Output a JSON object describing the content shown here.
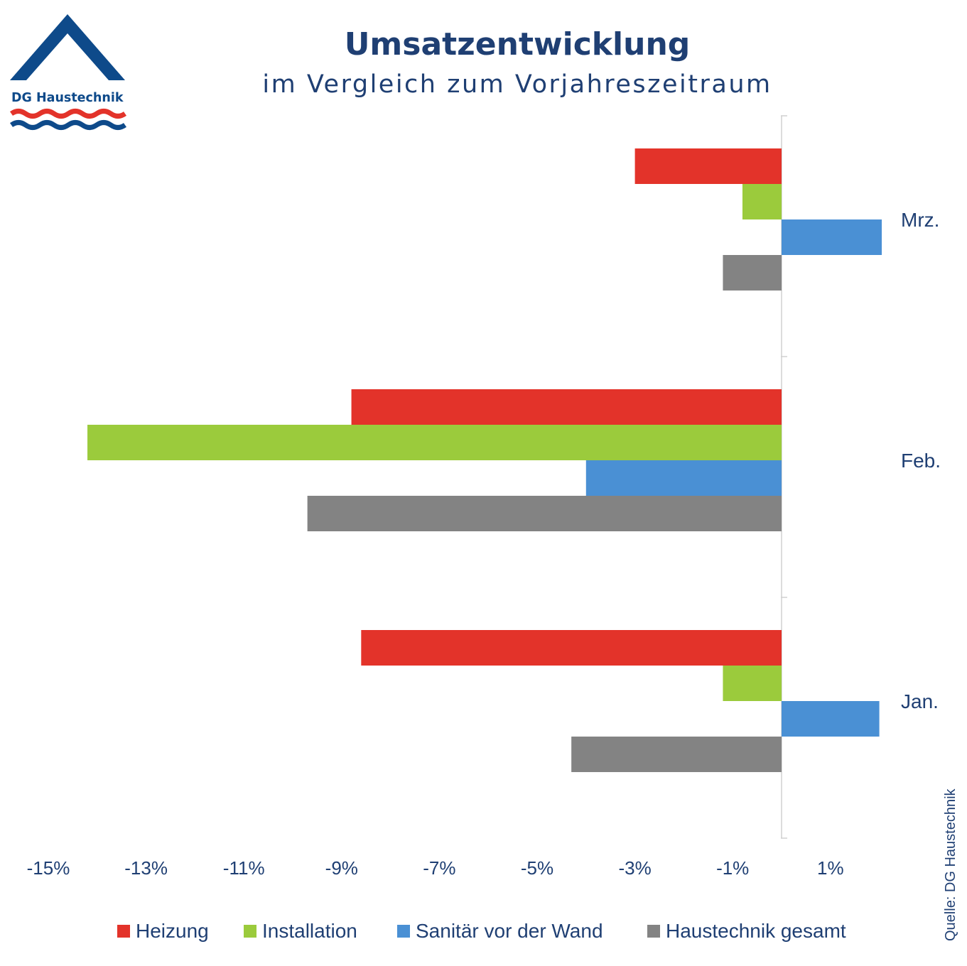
{
  "logo": {
    "text": "DG Haustechnik",
    "color_blue": "#0e4a8a",
    "color_red": "#e3332a"
  },
  "source_note": "Quelle: DG Haustechnik",
  "colors": {
    "text": "#1f3f73",
    "axis": "#d0d0d0"
  },
  "chart_data": {
    "type": "bar",
    "orientation": "horizontal",
    "title": "Umsatzentwicklung",
    "subtitle": "im Vergleich zum Vorjahreszeitraum",
    "categories": [
      "Jan.",
      "Feb.",
      "Mrz."
    ],
    "xlim": [
      -15,
      3
    ],
    "xticks": [
      -15,
      -13,
      -11,
      -9,
      -7,
      -5,
      -3,
      -1,
      1
    ],
    "xtick_labels": [
      "-15%",
      "-13%",
      "-11%",
      "-9%",
      "-7%",
      "-5%",
      "-3%",
      "-1%",
      "1%"
    ],
    "legend_position": "bottom",
    "grid": false,
    "series": [
      {
        "name": "Heizung",
        "color": "#e3332a",
        "values": [
          -8.6,
          -8.8,
          -3.0
        ]
      },
      {
        "name": "Installation",
        "color": "#9bcb3c",
        "values": [
          -1.2,
          -14.2,
          -0.8
        ]
      },
      {
        "name": "Sanitär vor der Wand",
        "color": "#4a90d4",
        "values": [
          2.0,
          -4.0,
          2.05
        ]
      },
      {
        "name": "Haustechnik gesamt",
        "color": "#838383",
        "values": [
          -4.3,
          -9.7,
          -1.2
        ]
      }
    ]
  }
}
